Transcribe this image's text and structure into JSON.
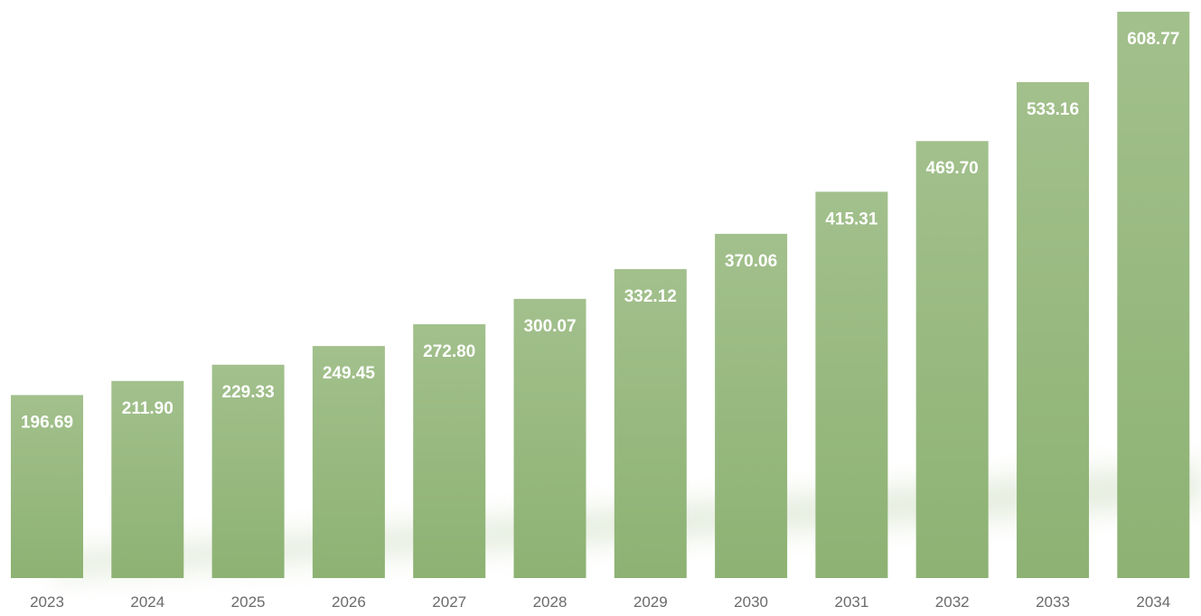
{
  "chart_data": {
    "type": "bar",
    "title": "",
    "xlabel": "",
    "ylabel": "",
    "categories": [
      "2023",
      "2024",
      "2025",
      "2026",
      "2027",
      "2028",
      "2029",
      "2030",
      "2031",
      "2032",
      "2033",
      "2034"
    ],
    "values": [
      196.69,
      211.9,
      229.33,
      249.45,
      272.8,
      300.07,
      332.12,
      370.06,
      415.31,
      469.7,
      533.16,
      608.77
    ],
    "value_labels": [
      "196.69",
      "211.90",
      "229.33",
      "249.45",
      "272.80",
      "300.07",
      "332.12",
      "370.06",
      "415.31",
      "469.70",
      "533.16",
      "608.77"
    ],
    "ylim": [
      0,
      608.77
    ],
    "grid": false,
    "legend": "none",
    "colors": {
      "bar_top": "#a2c08c",
      "bar_bottom": "#8db273",
      "bar_label": "#ffffff",
      "tick_label": "#6b6b6b"
    }
  }
}
